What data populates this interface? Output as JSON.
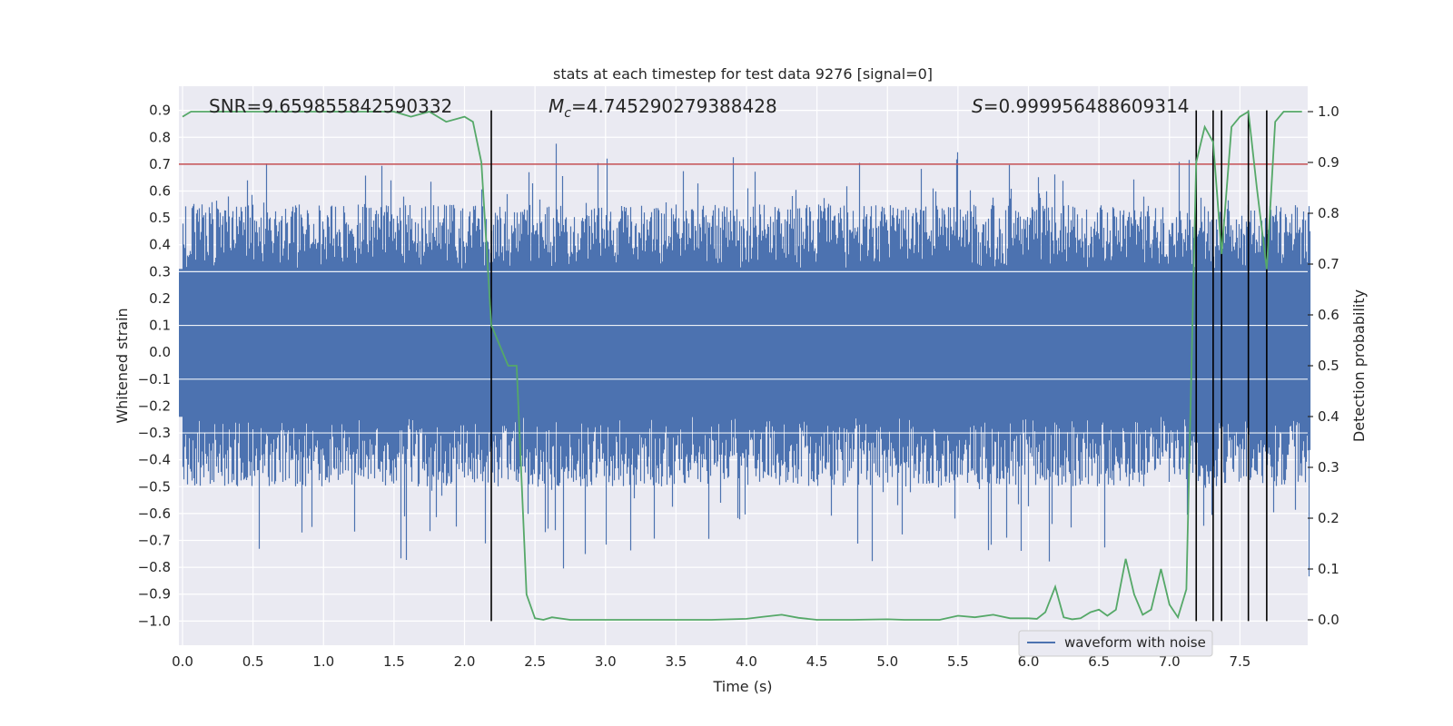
{
  "chart_data": {
    "type": "line",
    "title": "stats at each timestep for test data 9276 [signal=0]",
    "xlabel": "Time (s)",
    "ylabel_left": "Whitened strain",
    "ylabel_right": "Detection probability",
    "xlim": [
      0.0,
      8.0
    ],
    "ylim_left": [
      -1.09,
      0.99
    ],
    "ylim_right": [
      -0.05,
      1.05
    ],
    "xticks": [
      0.0,
      0.5,
      1.0,
      1.5,
      2.0,
      2.5,
      3.0,
      3.5,
      4.0,
      4.5,
      5.0,
      5.5,
      6.0,
      6.5,
      7.0,
      7.5
    ],
    "xtick_labels": [
      "0.0",
      "0.5",
      "1.0",
      "1.5",
      "2.0",
      "2.5",
      "3.0",
      "3.5",
      "4.0",
      "4.5",
      "5.0",
      "5.5",
      "6.0",
      "6.5",
      "7.0",
      "7.5"
    ],
    "yticks_left": [
      0.9,
      0.8,
      0.7,
      0.6,
      0.5,
      0.4,
      0.3,
      0.2,
      0.1,
      0.0,
      -0.1,
      -0.2,
      -0.3,
      -0.4,
      -0.5,
      -0.6,
      -0.7,
      -0.8,
      -0.9,
      -1.0
    ],
    "ytick_labels_left": [
      "0.9",
      "0.8",
      "0.7",
      "0.6",
      "0.5",
      "0.4",
      "0.3",
      "0.2",
      "0.1",
      "0.0",
      "−0.1",
      "−0.2",
      "−0.3",
      "−0.4",
      "−0.5",
      "−0.6",
      "−0.7",
      "−0.8",
      "−0.9",
      "−1.0"
    ],
    "yticks_right": [
      1.0,
      0.9,
      0.8,
      0.7,
      0.6,
      0.5,
      0.4,
      0.3,
      0.2,
      0.1,
      0.0
    ],
    "ytick_labels_right": [
      "1.0",
      "0.9",
      "0.8",
      "0.7",
      "0.6",
      "0.5",
      "0.4",
      "0.3",
      "0.2",
      "0.1",
      "0.0"
    ],
    "grid": true,
    "legend": {
      "placement": "lower-right",
      "entries": [
        "waveform with noise"
      ]
    },
    "annotations": {
      "snr": "SNR=9.659855842590332",
      "mc_symbol": "M",
      "mc_sub": "c",
      "mc_value": "=4.745290279388428",
      "s_symbol": "S",
      "s_value": "=0.999956488609314"
    },
    "threshold": {
      "value": 0.7,
      "axis": "left"
    },
    "vertical_lines": [
      {
        "x": 2.19,
        "y_from": -1.0,
        "y_to": 0.9
      },
      {
        "x": 7.19,
        "y_from": -1.0,
        "y_to": 0.9
      },
      {
        "x": 7.31,
        "y_from": -1.0,
        "y_to": 0.9
      },
      {
        "x": 7.37,
        "y_from": -1.0,
        "y_to": 0.9
      },
      {
        "x": 7.56,
        "y_from": -1.0,
        "y_to": 0.9
      },
      {
        "x": 7.69,
        "y_from": -1.0,
        "y_to": 0.9
      }
    ],
    "series": [
      {
        "name": "waveform with noise",
        "axis": "left",
        "kind": "noise-envelope",
        "duration_s": 8.0,
        "core_range": [
          -0.24,
          0.31
        ],
        "typical_peak_range": [
          -0.5,
          0.55
        ],
        "max": 0.89,
        "min": -1.0
      },
      {
        "name": "detection probability",
        "axis": "right",
        "x": [
          0.0,
          0.06,
          0.125,
          0.25,
          0.5,
          0.75,
          1.0,
          1.25,
          1.5,
          1.62,
          1.75,
          1.87,
          2.0,
          2.06,
          2.12,
          2.19,
          2.31,
          2.37,
          2.44,
          2.5,
          2.56,
          2.62,
          2.75,
          2.87,
          3.0,
          3.25,
          3.5,
          3.75,
          4.0,
          4.12,
          4.25,
          4.37,
          4.5,
          4.75,
          5.0,
          5.12,
          5.25,
          5.37,
          5.5,
          5.62,
          5.75,
          5.87,
          6.0,
          6.06,
          6.12,
          6.19,
          6.25,
          6.31,
          6.37,
          6.44,
          6.5,
          6.56,
          6.62,
          6.69,
          6.75,
          6.81,
          6.87,
          6.94,
          7.0,
          7.06,
          7.12,
          7.19,
          7.25,
          7.31,
          7.37,
          7.44,
          7.5,
          7.56,
          7.62,
          7.69,
          7.75,
          7.81,
          7.87,
          7.94
        ],
        "y": [
          0.99,
          1.0,
          1.0,
          1.0,
          1.0,
          1.0,
          1.0,
          1.0,
          1.0,
          0.99,
          1.0,
          0.98,
          0.99,
          0.98,
          0.9,
          0.58,
          0.5,
          0.5,
          0.05,
          0.003,
          0.0,
          0.005,
          0.0,
          0.0,
          0.0,
          0.0,
          0.0,
          0.0,
          0.002,
          0.006,
          0.01,
          0.004,
          0.0,
          0.0,
          0.001,
          0.0,
          0.0,
          0.0,
          0.008,
          0.005,
          0.01,
          0.003,
          0.003,
          0.002,
          0.015,
          0.065,
          0.005,
          0.001,
          0.003,
          0.015,
          0.02,
          0.008,
          0.02,
          0.12,
          0.05,
          0.01,
          0.02,
          0.1,
          0.03,
          0.005,
          0.06,
          0.9,
          0.97,
          0.94,
          0.72,
          0.97,
          0.99,
          1.0,
          0.85,
          0.69,
          0.98,
          1.0,
          1.0,
          1.0
        ]
      }
    ]
  }
}
